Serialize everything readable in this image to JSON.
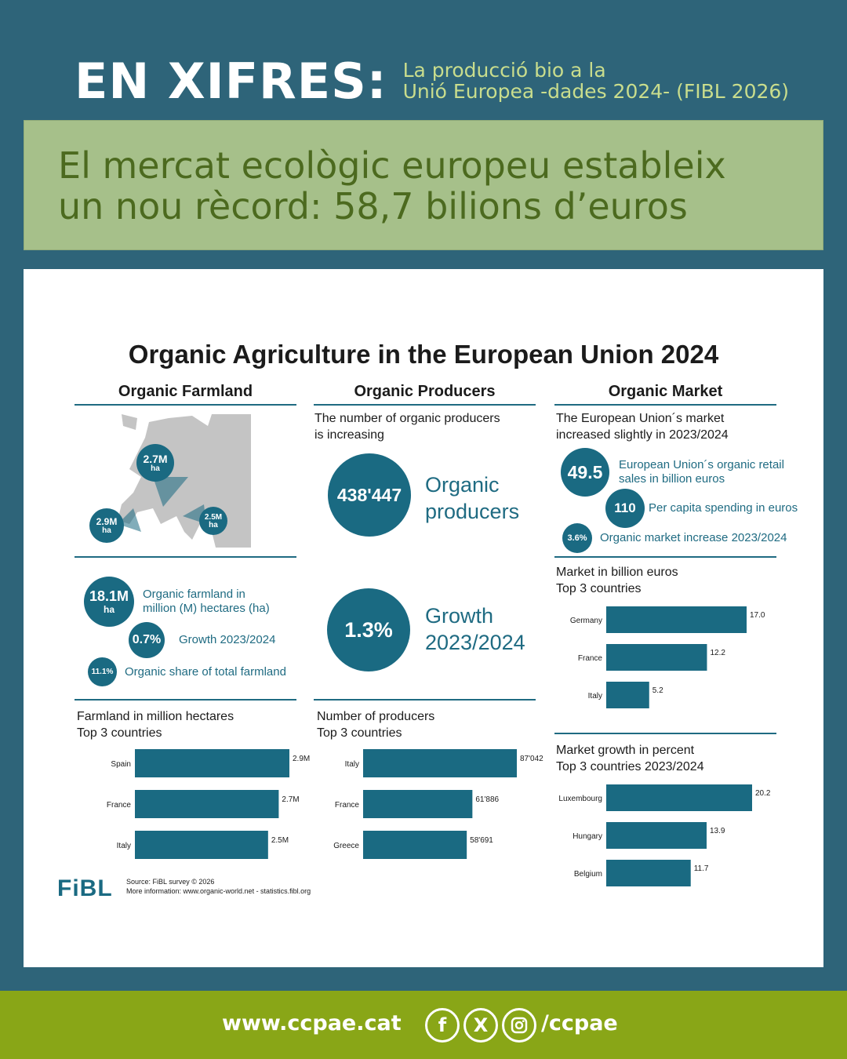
{
  "header": {
    "title": "EN XIFRES:",
    "subtitle_line1": "La producció bio a la",
    "subtitle_line2": "Unió Europea -dades 2024- (FIBL 2026)"
  },
  "banner": {
    "line1": "El mercat ecològic europeu estableix",
    "line2": "un nou rècord: 58,7 bilions d’euros"
  },
  "infographic": {
    "title": "Organic Agriculture in the European Union 2024",
    "farmland": {
      "heading": "Organic Farmland",
      "map_pins": [
        {
          "value": "2.7M",
          "unit": "ha"
        },
        {
          "value": "2.9M",
          "unit": "ha"
        },
        {
          "value": "2.5M",
          "unit": "ha"
        }
      ],
      "stats": [
        {
          "value": "18.1M",
          "unit": "ha",
          "label_line1": "Organic farmland in",
          "label_line2": "million (M) hectares (ha)"
        },
        {
          "value": "0.7%",
          "label": "Growth 2023/2024"
        },
        {
          "value": "11.1%",
          "label": "Organic share of total farmland"
        }
      ],
      "chart_title_line1": "Farmland in million hectares",
      "chart_title_line2": "Top 3 countries"
    },
    "producers": {
      "heading": "Organic Producers",
      "intro_line1": "The number of organic producers",
      "intro_line2": "is increasing",
      "count": "438'447",
      "count_label_line1": "Organic",
      "count_label_line2": "producers",
      "growth": "1.3%",
      "growth_label_line1": "Growth",
      "growth_label_line2": "2023/2024",
      "chart_title_line1": "Number of producers",
      "chart_title_line2": "Top 3 countries"
    },
    "market": {
      "heading": "Organic Market",
      "intro_line1": "The European Union´s market",
      "intro_line2": "increased slightly in 2023/2024",
      "retail": "49.5",
      "retail_label_line1": "European Union´s organic retail",
      "retail_label_line2": "sales in billion euros",
      "per_capita": "110",
      "per_capita_label": "Per capita spending in euros",
      "increase": "3.6%",
      "increase_label": "Organic market increase 2023/2024",
      "chart1_title_line1": "Market in billion euros",
      "chart1_title_line2": "Top 3 countries",
      "chart2_title_line1": "Market growth in percent",
      "chart2_title_line2": "Top 3 countries 2023/2024"
    },
    "logo": "FiBL",
    "source_line1": "Source: FiBL survey © 2026",
    "source_line2": "More information: www.organic-world.net - statistics.fibl.org"
  },
  "chart_data": [
    {
      "type": "bar",
      "orientation": "horizontal",
      "title": "Farmland in million hectares Top 3 countries",
      "categories": [
        "Spain",
        "France",
        "Italy"
      ],
      "values": [
        2.9,
        2.7,
        2.5
      ],
      "labels": [
        "2.9M",
        "2.7M",
        "2.5M"
      ]
    },
    {
      "type": "bar",
      "orientation": "horizontal",
      "title": "Number of producers Top 3 countries",
      "categories": [
        "Italy",
        "France",
        "Greece"
      ],
      "values": [
        87042,
        61886,
        58691
      ],
      "labels": [
        "87'042",
        "61'886",
        "58'691"
      ]
    },
    {
      "type": "bar",
      "orientation": "horizontal",
      "title": "Market in billion euros Top 3 countries",
      "categories": [
        "Germany",
        "France",
        "Italy"
      ],
      "values": [
        17.0,
        12.2,
        5.2
      ],
      "labels": [
        "17.0",
        "12.2",
        "5.2"
      ]
    },
    {
      "type": "bar",
      "orientation": "horizontal",
      "title": "Market growth in percent Top 3 countries 2023/2024",
      "categories": [
        "Luxembourg",
        "Hungary",
        "Belgium"
      ],
      "values": [
        20.2,
        13.9,
        11.7
      ],
      "labels": [
        "20.2",
        "13.9",
        "11.7"
      ]
    }
  ],
  "colors": {
    "bar": "#1a6a82",
    "background": "#2e6479",
    "banner": "#a6c08a",
    "footer": "#89a617"
  },
  "footer": {
    "url": "www.ccpae.cat",
    "icons": [
      "facebook-icon",
      "x-icon",
      "instagram-icon"
    ],
    "handle": "/ccpae"
  }
}
